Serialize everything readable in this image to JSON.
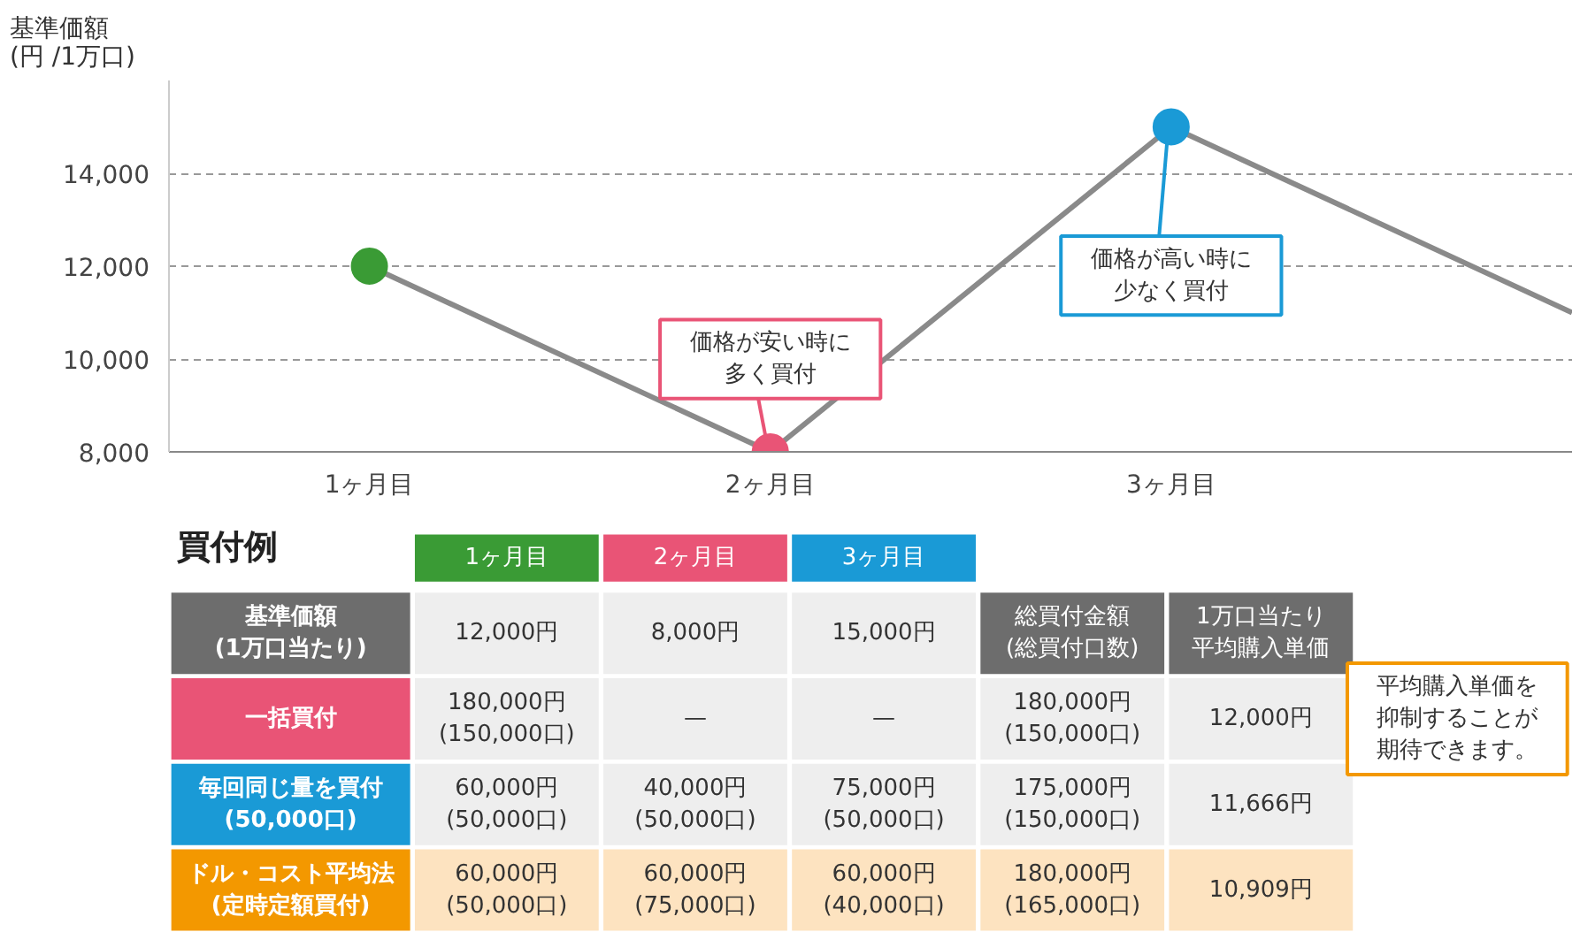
{
  "chart_data": [
    {
      "type": "line",
      "ylabel": "基準価額\n(円 /1万口)",
      "categories": [
        "1ヶ月目",
        "2ヶ月目",
        "3ヶ月目",
        null
      ],
      "series": [
        {
          "color": "#8a8a8a",
          "values": [
            12000,
            8000,
            15000,
            11000
          ],
          "colors": [
            "#3a9b35",
            "#e95476",
            "#1a9ad6",
            null
          ]
        }
      ],
      "ylim": [
        8000,
        16000
      ],
      "yticks": [
        {
          "value": 8000,
          "label": "8,000"
        },
        {
          "value": 10000,
          "label": "10,000"
        },
        {
          "value": 12000,
          "label": "12,000"
        },
        {
          "value": 14000,
          "label": "14,000"
        }
      ],
      "grid": "y",
      "marker": "circle",
      "line_style": "solid",
      "annotations": [
        {
          "text": "価格が安い時に多く買付",
          "x": "2ヶ月目",
          "y": 8000
        },
        {
          "text": "価格が高い時に少なく買付",
          "x": "3ヶ月目",
          "y": 15000
        }
      ]
    },
    {
      "type": "other",
      "title": "買付例",
      "categories": [
        "1ヶ月目",
        "2ヶ月目",
        "3ヶ月目",
        "総買付金額\n(総買付口数)",
        "1万口当たり平均購入単価"
      ],
      "colors": [
        "#3a9b35",
        "#e95476",
        "#1a9ad6",
        "#6d6d6d",
        "#6d6d6d"
      ],
      "y_categories": [
        "基準価額\n(1万口当たり)",
        "一括買付",
        "毎回同じ量を買付\n(50,000口)",
        "ドル・コスト平均法\n(定時定額買付)"
      ],
      "cell_labels": [
        [
          "12,000円",
          "8,000円",
          "15,000円",
          null,
          null
        ],
        [
          "180,000円\n(150,000口)",
          "—",
          "—",
          "180,000円\n(150,000口)",
          "12,000円"
        ],
        [
          "60,000円\n(50,000口)",
          "40,000円\n(50,000口)",
          "75,000円\n(50,000口)",
          "175,000円\n(150,000口)",
          "11,666円"
        ],
        [
          "60,000円\n(50,000口)",
          "60,000円\n(75,000口)",
          "60,000円\n(40,000口)",
          "180,000円\n(165,000口)",
          "10,909円"
        ]
      ],
      "annotations": [
        "平均購入単価を抑制することが期待できます。"
      ]
    }
  ]
}
